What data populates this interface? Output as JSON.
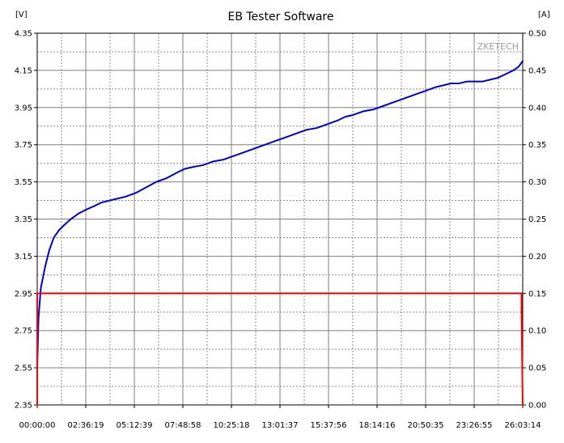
{
  "chart_data": {
    "type": "line",
    "title": "EB Tester Software",
    "watermark": "ZKETECH",
    "left_unit": "[V]",
    "right_unit": "[A]",
    "grid": true,
    "x_ticks": [
      "00:00:00",
      "02:36:19",
      "05:12:39",
      "07:48:58",
      "10:25:18",
      "13:01:37",
      "15:37:56",
      "18:14:16",
      "20:50:35",
      "23:26:55",
      "26:03:14"
    ],
    "x_range_seconds": [
      0,
      93794
    ],
    "left_axis": {
      "min": 2.35,
      "max": 4.35,
      "ticks": [
        "4.35",
        "4.15",
        "3.95",
        "3.75",
        "3.55",
        "3.35",
        "3.15",
        "2.95",
        "2.75",
        "2.55",
        "2.35"
      ]
    },
    "right_axis": {
      "min": 0.0,
      "max": 0.5,
      "ticks": [
        "0.50",
        "0.45",
        "0.40",
        "0.35",
        "0.30",
        "0.25",
        "0.20",
        "0.15",
        "0.10",
        "0.05",
        "0.00"
      ]
    },
    "series": [
      {
        "axis": "left",
        "color": "#0000c8",
        "points": [
          [
            0,
            2.56
          ],
          [
            250,
            2.82
          ],
          [
            700,
            2.98
          ],
          [
            1500,
            3.09
          ],
          [
            2300,
            3.18
          ],
          [
            3200,
            3.25
          ],
          [
            4200,
            3.29
          ],
          [
            5300,
            3.32
          ],
          [
            6500,
            3.35
          ],
          [
            8000,
            3.38
          ],
          [
            9400,
            3.4
          ],
          [
            11000,
            3.42
          ],
          [
            12500,
            3.44
          ],
          [
            14000,
            3.45
          ],
          [
            15500,
            3.46
          ],
          [
            17000,
            3.47
          ],
          [
            19000,
            3.49
          ],
          [
            21000,
            3.52
          ],
          [
            23000,
            3.55
          ],
          [
            25000,
            3.57
          ],
          [
            27000,
            3.6
          ],
          [
            28500,
            3.62
          ],
          [
            30000,
            3.63
          ],
          [
            32000,
            3.64
          ],
          [
            34000,
            3.66
          ],
          [
            36000,
            3.67
          ],
          [
            38000,
            3.69
          ],
          [
            40000,
            3.71
          ],
          [
            42000,
            3.73
          ],
          [
            44000,
            3.75
          ],
          [
            46000,
            3.77
          ],
          [
            48000,
            3.79
          ],
          [
            50000,
            3.81
          ],
          [
            52000,
            3.83
          ],
          [
            54000,
            3.84
          ],
          [
            56000,
            3.86
          ],
          [
            58000,
            3.88
          ],
          [
            59500,
            3.9
          ],
          [
            61000,
            3.91
          ],
          [
            63000,
            3.93
          ],
          [
            65000,
            3.94
          ],
          [
            67000,
            3.96
          ],
          [
            69000,
            3.98
          ],
          [
            71000,
            4.0
          ],
          [
            73000,
            4.02
          ],
          [
            75000,
            4.04
          ],
          [
            77000,
            4.06
          ],
          [
            78500,
            4.07
          ],
          [
            80000,
            4.08
          ],
          [
            81500,
            4.08
          ],
          [
            83000,
            4.09
          ],
          [
            84500,
            4.09
          ],
          [
            86000,
            4.09
          ],
          [
            87500,
            4.1
          ],
          [
            89000,
            4.11
          ],
          [
            90500,
            4.13
          ],
          [
            92000,
            4.15
          ],
          [
            93000,
            4.17
          ],
          [
            93794,
            4.2
          ]
        ]
      },
      {
        "axis": "right",
        "color": "#ff0000",
        "points": [
          [
            0,
            0.0
          ],
          [
            0,
            0.15
          ],
          [
            93550,
            0.15
          ],
          [
            93550,
            0.13
          ],
          [
            93794,
            0.0
          ]
        ]
      }
    ]
  }
}
